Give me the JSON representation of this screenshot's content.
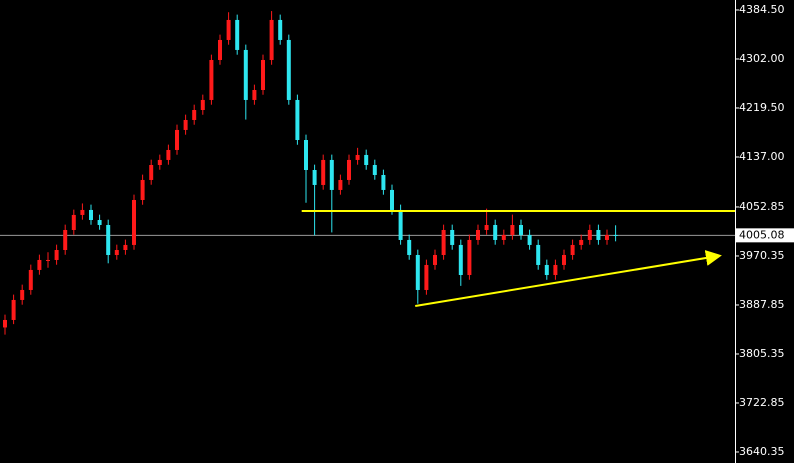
{
  "chart_data": {
    "type": "candlestick",
    "up_color": "#ff1a1a",
    "down_color": "#2ee6f0",
    "ylim": [
      3621.8,
      4401.3
    ],
    "yticks": [
      {
        "value": 4384.5,
        "label": "4384.50"
      },
      {
        "value": 4302.0,
        "label": "4302.00"
      },
      {
        "value": 4219.5,
        "label": "4219.50"
      },
      {
        "value": 4137.0,
        "label": "4137.00"
      },
      4052.85,
      3970.35,
      3887.85,
      3805.35,
      3722.85,
      3640.35
    ],
    "open": [
      3850.0,
      3862.6,
      3896.3,
      3913.1,
      3946.8,
      3963.6,
      3963.6,
      3980.4,
      4014.1,
      4039.4,
      4047.8,
      4030.9,
      4022.5,
      3972.0,
      3980.4,
      3988.9,
      4064.6,
      4098.3,
      4123.5,
      4132.0,
      4148.8,
      4182.5,
      4199.3,
      4216.1,
      4233.0,
      4300.3,
      4334.0,
      4367.7,
      4317.2,
      4233.0,
      4249.8,
      4300.3,
      4367.7,
      4334.0,
      4233.0,
      4165.6,
      4115.1,
      4089.9,
      4132.0,
      4081.5,
      4098.3,
      4132.0,
      4140.4,
      4123.5,
      4106.7,
      4081.5,
      4047.8,
      3997.3,
      3972.0,
      3913.1,
      3955.2,
      3972.0,
      4014.1,
      3988.9,
      3938.3,
      3997.3,
      4014.1,
      4022.5,
      3997.3,
      4005.7,
      4022.5,
      4005.7,
      3988.9,
      3955.2,
      3938.3,
      3955.2,
      3972.0,
      3988.9,
      3997.3,
      4014.1,
      3997.3,
      4005.7
    ],
    "high": [
      3871.6,
      3905.3,
      3922.1,
      3955.8,
      3972.6,
      3976.6,
      3989.4,
      4023.1,
      4048.4,
      4058.8,
      4056.8,
      4039.9,
      4031.5,
      3989.4,
      3997.9,
      4073.6,
      4107.3,
      4132.5,
      4141.0,
      4157.8,
      4191.5,
      4208.3,
      4225.1,
      4242.0,
      4309.3,
      4343.0,
      4380.7,
      4376.7,
      4326.2,
      4258.8,
      4309.3,
      4382.7,
      4376.7,
      4343.0,
      4242.0,
      4174.6,
      4124.1,
      4141.0,
      4141.0,
      4107.3,
      4141.0,
      4152.4,
      4149.4,
      4132.5,
      4115.7,
      4090.5,
      4056.8,
      4006.3,
      3981.0,
      3964.2,
      3981.0,
      4023.1,
      4023.1,
      3997.9,
      4006.3,
      4023.1,
      4050.0,
      4031.5,
      4014.7,
      4040.0,
      4031.5,
      4014.7,
      3997.9,
      3964.2,
      3964.2,
      3981.0,
      3997.9,
      4006.3,
      4023.1,
      4023.1,
      4014.7,
      4022.0
    ],
    "low": [
      3838.0,
      3855.6,
      3888.3,
      3905.1,
      3938.8,
      3950.6,
      3955.6,
      3972.4,
      4006.1,
      4031.4,
      4022.9,
      4014.5,
      3958.0,
      3964.0,
      3972.4,
      3980.9,
      4056.6,
      4090.3,
      4115.5,
      4124.0,
      4140.8,
      4174.5,
      4191.3,
      4208.1,
      4225.0,
      4292.3,
      4326.0,
      4309.2,
      4200.0,
      4225.0,
      4241.8,
      4292.3,
      4326.0,
      4225.0,
      4157.6,
      4060.0,
      4005.0,
      4081.9,
      4010.0,
      4073.5,
      4090.3,
      4124.0,
      4115.5,
      4098.7,
      4073.5,
      4039.8,
      3989.3,
      3964.0,
      3890.0,
      3905.1,
      3947.2,
      3964.0,
      3980.9,
      3920.0,
      3930.3,
      3989.3,
      4006.1,
      3989.3,
      3989.3,
      3997.7,
      3997.7,
      3980.9,
      3947.2,
      3930.3,
      3930.3,
      3947.2,
      3964.0,
      3980.9,
      3989.3,
      3989.3,
      3989.3,
      3995.0
    ],
    "close": [
      3862.6,
      3896.3,
      3913.1,
      3946.8,
      3963.6,
      3963.6,
      3980.4,
      4014.1,
      4039.4,
      4047.8,
      4030.9,
      4022.5,
      3972.0,
      3980.4,
      3988.9,
      4064.6,
      4098.3,
      4123.5,
      4132.0,
      4148.8,
      4182.5,
      4199.3,
      4216.1,
      4233.0,
      4300.3,
      4334.0,
      4367.7,
      4317.2,
      4233.0,
      4249.8,
      4300.3,
      4367.7,
      4334.0,
      4233.0,
      4165.6,
      4115.1,
      4089.9,
      4132.0,
      4081.5,
      4098.3,
      4132.0,
      4140.4,
      4123.5,
      4106.7,
      4081.5,
      4047.8,
      3997.3,
      3972.0,
      3913.1,
      3955.2,
      3972.0,
      4014.1,
      3988.9,
      3938.3,
      3997.3,
      4014.1,
      4022.5,
      3997.3,
      4005.7,
      4022.5,
      4005.7,
      3988.9,
      3955.2,
      3938.3,
      3955.2,
      3972.0,
      3988.9,
      3997.3,
      4014.1,
      3997.3,
      4005.7,
      4005.08
    ],
    "last_price": 4005.08,
    "annotations": [
      {
        "x": [
          34.5,
          84.9
        ],
        "y": [
          4046.1,
          4046.1
        ],
        "color": "#ffff00",
        "arrow": false
      },
      {
        "x": [
          47.7,
          82.9
        ],
        "y": [
          3886.2,
          3970.3
        ],
        "color": "#ffff00",
        "arrow": true
      }
    ]
  }
}
